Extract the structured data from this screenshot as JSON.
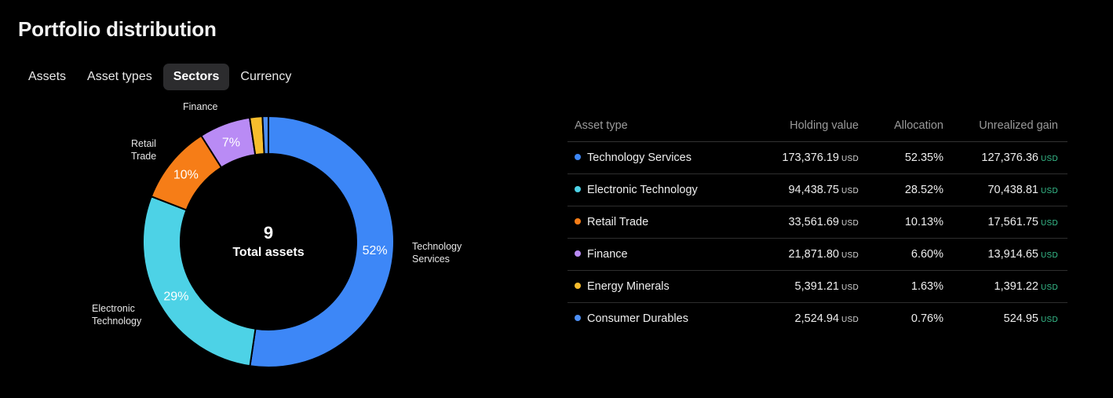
{
  "title": "Portfolio distribution",
  "tabs": [
    {
      "label": "Assets",
      "active": false
    },
    {
      "label": "Asset types",
      "active": false
    },
    {
      "label": "Sectors",
      "active": true
    },
    {
      "label": "Currency",
      "active": false
    }
  ],
  "donut": {
    "center_value": "9",
    "center_label": "Total assets",
    "segments": [
      {
        "name": "Technology Services",
        "percent": 52.35,
        "label": "52%",
        "color": "#3d87f7",
        "outer_label": "Technology\nServices"
      },
      {
        "name": "Electronic Technology",
        "percent": 28.52,
        "label": "29%",
        "color": "#4dd2e6",
        "outer_label": "Electronic\nTechnology"
      },
      {
        "name": "Retail Trade",
        "percent": 10.13,
        "label": "10%",
        "color": "#f67d17",
        "outer_label": "Retail\nTrade"
      },
      {
        "name": "Finance",
        "percent": 6.6,
        "label": "7%",
        "color": "#b98bf5",
        "outer_label": "Finance"
      },
      {
        "name": "Energy Minerals",
        "percent": 1.63,
        "label": "",
        "color": "#f7bd2d",
        "outer_label": ""
      },
      {
        "name": "Consumer Durables",
        "percent": 0.76,
        "label": "",
        "color": "#4d8ff5",
        "outer_label": ""
      }
    ]
  },
  "table": {
    "headers": [
      "Asset type",
      "Holding value",
      "Allocation",
      "Unrealized gain"
    ],
    "currency": "USD",
    "rows": [
      {
        "name": "Technology Services",
        "color": "#3d87f7",
        "holding": "173,376.19",
        "allocation": "52.35%",
        "gain": "127,376.36"
      },
      {
        "name": "Electronic Technology",
        "color": "#4dd2e6",
        "holding": "94,438.75",
        "allocation": "28.52%",
        "gain": "70,438.81"
      },
      {
        "name": "Retail Trade",
        "color": "#f67d17",
        "holding": "33,561.69",
        "allocation": "10.13%",
        "gain": "17,561.75"
      },
      {
        "name": "Finance",
        "color": "#b98bf5",
        "holding": "21,871.80",
        "allocation": "6.60%",
        "gain": "13,914.65"
      },
      {
        "name": "Energy Minerals",
        "color": "#f7bd2d",
        "holding": "5,391.21",
        "allocation": "1.63%",
        "gain": "1,391.22"
      },
      {
        "name": "Consumer Durables",
        "color": "#4d8ff5",
        "holding": "2,524.94",
        "allocation": "0.76%",
        "gain": "524.95"
      }
    ]
  },
  "colors": {
    "gain": "#38c08e",
    "active_tab_bg": "#2c2c2e"
  }
}
